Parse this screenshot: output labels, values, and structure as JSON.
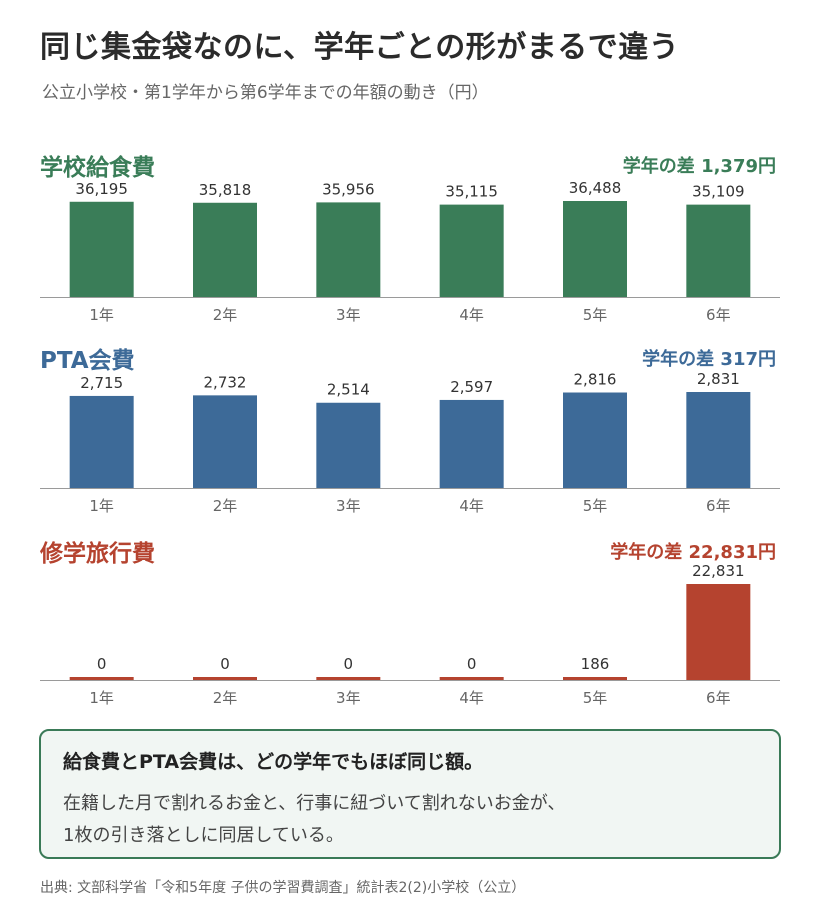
{
  "header": {
    "title": "同じ集金袋なのに、学年ごとの形がまるで違う",
    "subtitle": "公立小学校・第1学年から第6学年までの年額の動き（円）"
  },
  "chart_data": [
    {
      "type": "bar",
      "title": "学校給食費",
      "annotation": "学年の差 1,379円",
      "color": "#3a7d58",
      "categories": [
        "1年",
        "2年",
        "3年",
        "4年",
        "5年",
        "6年"
      ],
      "value_labels": [
        "36,195",
        "35,818",
        "35,956",
        "35,115",
        "36,488",
        "35,109"
      ],
      "values": [
        36195,
        35818,
        35956,
        35115,
        36488,
        35109
      ],
      "ylim": [
        0,
        36488
      ],
      "grid": false
    },
    {
      "type": "bar",
      "title": "PTA会費",
      "annotation": "学年の差 317円",
      "color": "#3d6a98",
      "categories": [
        "1年",
        "2年",
        "3年",
        "4年",
        "5年",
        "6年"
      ],
      "value_labels": [
        "2,715",
        "2,732",
        "2,514",
        "2,597",
        "2,816",
        "2,831"
      ],
      "values": [
        2715,
        2732,
        2514,
        2597,
        2816,
        2831
      ],
      "ylim": [
        0,
        2831
      ],
      "grid": false
    },
    {
      "type": "bar",
      "title": "修学旅行費",
      "annotation": "学年の差 22,831円",
      "color": "#b5432f",
      "categories": [
        "1年",
        "2年",
        "3年",
        "4年",
        "5年",
        "6年"
      ],
      "value_labels": [
        "0",
        "0",
        "0",
        "0",
        "186",
        "22,831"
      ],
      "values": [
        0,
        0,
        0,
        0,
        186,
        22831
      ],
      "ylim": [
        0,
        22831
      ],
      "grid": false
    }
  ],
  "note": {
    "title": "給食費とPTA会費は、どの学年でもほぼ同じ額。",
    "line1": "在籍した月で割れるお金と、行事に紐づいて割れないお金が、",
    "line2": "1枚の引き落としに同居している。"
  },
  "source": "出典: 文部科学省「令和5年度 子供の学習費調査」統計表2(2)小学校（公立）"
}
